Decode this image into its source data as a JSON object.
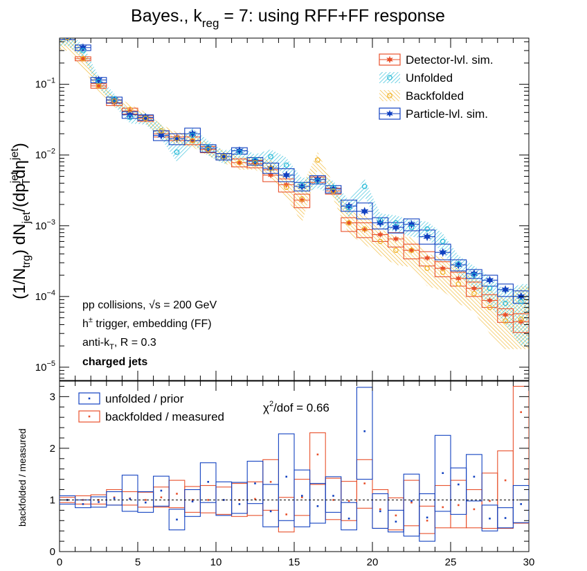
{
  "colors": {
    "detector": "#e8502b",
    "unfolded": "#1fb8d6",
    "backfolded": "#f0b020",
    "particle": "#1040c0",
    "ratio_unfolded": "#1040c0",
    "ratio_backfolded": "#e8502b"
  },
  "chart_data": [
    {
      "type": "scatter",
      "title_parts": {
        "pre": "Bayes., k",
        "sub": "reg",
        "post": " = 7: using RFF+FF response"
      },
      "ylabel_parts": {
        "a": "(1/N",
        "a_sub": "trg",
        "b": ") dN",
        "b_sub": "jet",
        "c": "/(dp",
        "c_sup": "jet",
        "c_sub": "T",
        "d": "dη",
        "d_sup": "jet",
        "e": ")"
      },
      "ylim": [
        6.5e-06,
        0.45
      ],
      "log_y": true,
      "xlim": [
        0,
        30
      ],
      "y_ticks": [
        {
          "value": 0.1,
          "base": "10",
          "exp": "−1"
        },
        {
          "value": 0.01,
          "base": "10",
          "exp": "−2"
        },
        {
          "value": 0.001,
          "base": "10",
          "exp": "−3"
        },
        {
          "value": 0.0001,
          "base": "10",
          "exp": "−4"
        },
        {
          "value": 1e-05,
          "base": "10",
          "exp": "−5"
        }
      ],
      "legend_position": "top-right",
      "legend": [
        {
          "key": "detector",
          "label": "Detector-lvl. sim."
        },
        {
          "key": "unfolded",
          "label": "Unfolded"
        },
        {
          "key": "backfolded",
          "label": "Backfolded"
        },
        {
          "key": "particle",
          "label": "Particle-lvl. sim."
        }
      ],
      "annotations": {
        "line1_pre": "pp collisions, ",
        "line1_sqrt": "√s",
        "line1_post": " = 200 GeV",
        "line2_pre": "h",
        "line2_sup": "±",
        "line2_post": " trigger, embedding (FF)",
        "line3_pre": "anti-k",
        "line3_sub": "T",
        "line3_post": ", R = 0.3",
        "line4": "charged jets"
      },
      "series": [
        {
          "key": "particle",
          "x": [
            0.5,
            1.5,
            2.5,
            3.5,
            4.5,
            5.5,
            6.5,
            7.5,
            8.5,
            9.5,
            10.5,
            11.5,
            12.5,
            13.5,
            14.5,
            15.5,
            16.5,
            17.5,
            18.5,
            19.5,
            20.5,
            21.5,
            22.5,
            23.5,
            24.5,
            25.5,
            26.5,
            27.5,
            28.5,
            29.5
          ],
          "y": [
            0.46,
            0.33,
            0.115,
            0.06,
            0.037,
            0.034,
            0.019,
            0.017,
            0.02,
            0.0125,
            0.0095,
            0.0115,
            0.0082,
            0.0065,
            0.0052,
            0.0036,
            0.0045,
            0.0033,
            0.0019,
            0.0016,
            0.0011,
            0.00095,
            0.00105,
            0.0007,
            0.00042,
            0.00028,
            0.00021,
            0.00017,
            0.000125,
            0.0001
          ],
          "box_lo": [
            0.43,
            0.3,
            0.105,
            0.054,
            0.033,
            0.031,
            0.016,
            0.014,
            0.016,
            0.011,
            0.0085,
            0.0103,
            0.0072,
            0.0055,
            0.0042,
            0.0031,
            0.0039,
            0.0029,
            0.0016,
            0.00125,
            0.0009,
            0.00079,
            0.00085,
            0.00055,
            0.00033,
            0.00023,
            0.00018,
            0.00014,
            0.0001,
            8e-05
          ],
          "box_hi": [
            0.49,
            0.36,
            0.125,
            0.066,
            0.041,
            0.037,
            0.022,
            0.02,
            0.024,
            0.014,
            0.0105,
            0.0127,
            0.0092,
            0.0077,
            0.0064,
            0.0041,
            0.0051,
            0.0037,
            0.0023,
            0.0021,
            0.0013,
            0.00111,
            0.00125,
            0.00087,
            0.00055,
            0.00033,
            0.00024,
            0.0002,
            0.00015,
            0.00012
          ]
        },
        {
          "key": "detector",
          "x": [
            0.5,
            1.5,
            2.5,
            3.5,
            4.5,
            5.5,
            6.5,
            7.5,
            8.5,
            9.5,
            10.5,
            11.5,
            12.5,
            13.5,
            14.5,
            15.5,
            16.5,
            17.5,
            18.5,
            19.5,
            20.5,
            21.5,
            22.5,
            23.5,
            24.5,
            25.5,
            26.5,
            27.5,
            28.5,
            29.5
          ],
          "y": [
            0.46,
            0.23,
            0.095,
            0.055,
            0.042,
            0.033,
            0.02,
            0.018,
            0.016,
            0.012,
            0.0095,
            0.0078,
            0.0075,
            0.0052,
            0.0038,
            0.0023,
            0.0045,
            0.0031,
            0.0011,
            0.00088,
            0.00075,
            0.00065,
            0.00045,
            0.00035,
            0.00025,
            0.00018,
            0.00013,
            8.8e-05,
            5.5e-05,
            4.4e-05
          ],
          "box_lo": [
            0.43,
            0.215,
            0.088,
            0.05,
            0.038,
            0.03,
            0.018,
            0.016,
            0.014,
            0.0108,
            0.0085,
            0.0068,
            0.0066,
            0.0042,
            0.003,
            0.0018,
            0.0041,
            0.0028,
            0.00083,
            0.00068,
            0.0006,
            0.0005,
            0.00034,
            0.00027,
            0.00019,
            0.00014,
            0.0001,
            7e-05,
            4.3e-05,
            3.1e-05
          ],
          "box_hi": [
            0.49,
            0.245,
            0.102,
            0.06,
            0.046,
            0.036,
            0.022,
            0.02,
            0.018,
            0.0132,
            0.0105,
            0.0088,
            0.0084,
            0.0062,
            0.0046,
            0.0028,
            0.0049,
            0.0034,
            0.0013,
            0.0011,
            0.0009,
            0.0008,
            0.00055,
            0.00043,
            0.00031,
            0.00022,
            0.00016,
            0.000106,
            6.7e-05,
            5.7e-05
          ]
        },
        {
          "key": "unfolded",
          "x": [
            0.5,
            1.5,
            2.5,
            3.5,
            4.5,
            5.5,
            6.5,
            7.5,
            8.5,
            9.5,
            10.5,
            11.5,
            12.5,
            13.5,
            14.5,
            15.5,
            16.5,
            17.5,
            18.5,
            19.5,
            20.5,
            21.5,
            22.5,
            23.5,
            24.5,
            25.5,
            26.5,
            27.5,
            28.5,
            29.5
          ],
          "y": [
            0.46,
            0.3,
            0.11,
            0.062,
            0.034,
            0.033,
            0.022,
            0.011,
            0.019,
            0.013,
            0.0095,
            0.011,
            0.0085,
            0.0095,
            0.0072,
            0.0038,
            0.0043,
            0.0035,
            0.0018,
            0.0036,
            0.0012,
            0.0011,
            0.00095,
            0.0009,
            0.0006,
            0.00029,
            0.0002,
            0.00013,
            8e-05,
            8.5e-05
          ],
          "band_lo": [
            0.35,
            0.24,
            0.09,
            0.05,
            0.028,
            0.027,
            0.017,
            0.008,
            0.014,
            0.0098,
            0.0075,
            0.0088,
            0.0068,
            0.0072,
            0.0052,
            0.0029,
            0.0034,
            0.0027,
            0.0013,
            0.0026,
            0.0009,
            0.00082,
            0.0007,
            0.00066,
            0.00042,
            0.0002,
            0.00013,
            7.5e-05,
            4e-05,
            2e-05
          ],
          "band_hi": [
            0.56,
            0.36,
            0.13,
            0.074,
            0.04,
            0.039,
            0.027,
            0.014,
            0.024,
            0.016,
            0.0115,
            0.0132,
            0.0102,
            0.012,
            0.0092,
            0.0047,
            0.0052,
            0.0043,
            0.0023,
            0.0046,
            0.0015,
            0.0014,
            0.0012,
            0.00115,
            0.00078,
            0.00038,
            0.00027,
            0.00019,
            0.00012,
            0.00015
          ]
        },
        {
          "key": "backfolded",
          "x": [
            0.5,
            1.5,
            2.5,
            3.5,
            4.5,
            5.5,
            6.5,
            7.5,
            8.5,
            9.5,
            10.5,
            11.5,
            12.5,
            13.5,
            14.5,
            15.5,
            16.5,
            17.5,
            18.5,
            19.5,
            20.5,
            21.5,
            22.5,
            23.5,
            24.5,
            25.5,
            26.5,
            27.5,
            28.5,
            29.5
          ],
          "y": [
            0.46,
            0.23,
            0.095,
            0.058,
            0.044,
            0.033,
            0.022,
            0.017,
            0.016,
            0.012,
            0.0095,
            0.0078,
            0.0078,
            0.0065,
            0.0035,
            0.0024,
            0.0085,
            0.0031,
            0.0011,
            0.0009,
            0.0006,
            0.00045,
            0.00045,
            0.00025,
            0.00022,
            0.00015,
            0.00011,
            7e-05,
            4.5e-05,
            4.8e-05
          ],
          "band_lo": [
            0.3,
            0.17,
            0.078,
            0.048,
            0.037,
            0.027,
            0.018,
            0.014,
            0.013,
            0.0098,
            0.0077,
            0.0062,
            0.0062,
            0.0048,
            0.0025,
            0.0011,
            0.0062,
            0.0024,
            0.00075,
            0.00055,
            0.00038,
            0.00028,
            0.00026,
            0.00014,
            0.00012,
            8e-05,
            6e-05,
            3e-05,
            1.8e-05,
            1.8e-05
          ],
          "band_hi": [
            0.6,
            0.29,
            0.115,
            0.07,
            0.052,
            0.04,
            0.027,
            0.021,
            0.02,
            0.0145,
            0.0115,
            0.0095,
            0.0095,
            0.0085,
            0.0048,
            0.0036,
            0.011,
            0.0039,
            0.0016,
            0.0014,
            0.0009,
            0.0007,
            0.0007,
            0.0004,
            0.00036,
            0.00025,
            0.00019,
            0.00013,
            9e-05,
            0.00014
          ]
        }
      ]
    },
    {
      "type": "scatter",
      "ylabel": "backfolded / measured",
      "xlim": [
        0,
        30
      ],
      "ylim": [
        0,
        3.3
      ],
      "x_ticks": [
        0,
        5,
        10,
        15,
        20,
        25,
        30
      ],
      "y_ticks": [
        0,
        1,
        2,
        3
      ],
      "reference_line": 1,
      "chi2_parts": {
        "pre": "χ",
        "sup": "2",
        "post": "/dof = 0.66"
      },
      "legend_position": "top-left",
      "legend": [
        {
          "key": "ratio_unfolded",
          "label": "unfolded / prior"
        },
        {
          "key": "ratio_backfolded",
          "label": "backfolded / measured"
        }
      ],
      "series": [
        {
          "key": "ratio_unfolded",
          "x": [
            0.5,
            1.5,
            2.5,
            3.5,
            4.5,
            5.5,
            6.5,
            7.5,
            8.5,
            9.5,
            10.5,
            11.5,
            12.5,
            13.5,
            14.5,
            15.5,
            16.5,
            17.5,
            18.5,
            19.5,
            20.5,
            21.5,
            22.5,
            23.5,
            24.5,
            25.5,
            26.5,
            27.5,
            28.5,
            29.5
          ],
          "y": [
            1.0,
            0.92,
            0.96,
            1.03,
            1.02,
            0.95,
            1.18,
            0.62,
            0.97,
            1.35,
            1.0,
            0.92,
            1.32,
            0.78,
            1.45,
            1.08,
            0.88,
            1.08,
            0.64,
            2.33,
            0.78,
            0.58,
            0.98,
            0.66,
            1.52,
            1.3,
            1.45,
            0.64,
            0.65,
            0.92
          ],
          "lo": [
            0.92,
            0.85,
            0.86,
            0.9,
            0.78,
            0.76,
            0.88,
            0.42,
            0.68,
            0.95,
            0.7,
            0.74,
            0.93,
            0.48,
            0.6,
            0.48,
            0.55,
            0.76,
            0.42,
            1.4,
            0.45,
            0.38,
            0.3,
            0.2,
            0.78,
            0.72,
            0.98,
            0.4,
            0.46,
            0.56
          ],
          "hi": [
            1.08,
            1.0,
            1.06,
            1.16,
            1.48,
            1.16,
            1.46,
            0.82,
            1.2,
            1.72,
            1.35,
            1.34,
            1.75,
            1.3,
            2.28,
            1.58,
            1.32,
            1.45,
            0.95,
            3.18,
            1.12,
            0.8,
            1.5,
            1.12,
            2.25,
            1.62,
            1.88,
            0.9,
            0.85,
            1.28
          ]
        },
        {
          "key": "ratio_backfolded",
          "x": [
            0.5,
            1.5,
            2.5,
            3.5,
            4.5,
            5.5,
            6.5,
            7.5,
            8.5,
            9.5,
            10.5,
            11.5,
            12.5,
            13.5,
            14.5,
            15.5,
            16.5,
            17.5,
            18.5,
            19.5,
            20.5,
            21.5,
            22.5,
            23.5,
            24.5,
            25.5,
            26.5,
            27.5,
            28.5,
            29.5
          ],
          "y": [
            1.0,
            1.0,
            1.0,
            1.05,
            1.03,
            1.0,
            1.05,
            1.12,
            1.0,
            1.0,
            1.0,
            1.0,
            1.02,
            1.35,
            0.72,
            1.05,
            1.88,
            1.0,
            0.98,
            1.32,
            0.82,
            0.7,
            0.95,
            0.6,
            0.86,
            0.9,
            0.82,
            0.98,
            1.38,
            2.7
          ],
          "lo": [
            0.95,
            0.92,
            0.92,
            0.9,
            0.9,
            0.86,
            0.86,
            0.85,
            0.76,
            0.75,
            0.72,
            0.68,
            0.7,
            0.8,
            0.38,
            0.7,
            1.3,
            0.62,
            0.6,
            0.84,
            0.45,
            0.42,
            0.5,
            0.35,
            0.46,
            0.46,
            0.46,
            0.45,
            0.45,
            0.55
          ],
          "hi": [
            1.05,
            1.08,
            1.1,
            1.2,
            1.16,
            1.15,
            1.25,
            1.38,
            1.26,
            1.28,
            1.25,
            1.32,
            1.35,
            1.78,
            1.05,
            1.4,
            2.3,
            1.42,
            1.36,
            1.78,
            1.2,
            1.04,
            1.38,
            0.88,
            1.28,
            1.38,
            1.2,
            1.52,
            1.95,
            3.2
          ]
        }
      ]
    }
  ]
}
